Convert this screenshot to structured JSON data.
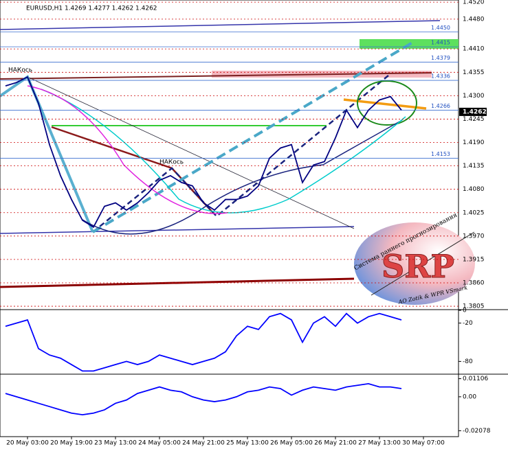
{
  "chart_data": [
    {
      "type": "line",
      "title": "EURUSD,H1  1.4269 1.4277 1.4262 1.4262",
      "ylim": [
        1.3797,
        1.4525
      ],
      "yticks": [
        {
          "value": 1.452,
          "label": "1.4520"
        },
        {
          "value": 1.448,
          "label": "1.4480"
        },
        {
          "value": 1.441,
          "label": "1.4410"
        },
        {
          "value": 1.4355,
          "label": "1.4355"
        },
        {
          "value": 1.43,
          "label": "1.4300"
        },
        {
          "value": 1.4245,
          "label": "1.4245"
        },
        {
          "value": 1.419,
          "label": "1.4190"
        },
        {
          "value": 1.4135,
          "label": "1.4135"
        },
        {
          "value": 1.408,
          "label": "1.4080"
        },
        {
          "value": 1.4025,
          "label": "1.4025"
        },
        {
          "value": 1.397,
          "label": "1.3970"
        },
        {
          "value": 1.3915,
          "label": "1.3915"
        },
        {
          "value": 1.386,
          "label": "1.3860"
        },
        {
          "value": 1.3805,
          "label": "1.3805"
        }
      ],
      "grid": true,
      "levels": [
        {
          "value": 1.445,
          "label": "1.4450"
        },
        {
          "value": 1.4415,
          "label": "1.4415"
        },
        {
          "value": 1.4379,
          "label": "1.4379"
        },
        {
          "value": 1.4336,
          "label": "1.4336"
        },
        {
          "value": 1.4266,
          "label": "1.4266"
        },
        {
          "value": 1.4153,
          "label": "1.4153"
        }
      ],
      "current_price": {
        "value": 1.4262,
        "label": "1.4262"
      },
      "annotations": [
        "НАКось",
        "НАКось"
      ],
      "series": [
        {
          "color": "#000080",
          "values": [
            1.4323,
            1.4331,
            1.4344,
            1.4282,
            1.4185,
            1.4112,
            1.4056,
            1.4007,
            1.3991,
            1.404,
            1.4048,
            1.4031,
            1.4048,
            1.4072,
            1.4101,
            1.4112,
            1.4096,
            1.4088,
            1.4048,
            1.4031,
            1.4056,
            1.4056,
            1.4064,
            1.4088,
            1.4153,
            1.4177,
            1.4185,
            1.4096,
            1.4137,
            1.4145,
            1.4201,
            1.4266,
            1.4225,
            1.4266,
            1.429,
            1.4298,
            1.4266,
            null,
            null
          ]
        }
      ]
    },
    {
      "type": "line",
      "ylim": [
        -100,
        0
      ],
      "yticks": [
        0,
        -20,
        -80
      ],
      "series": [
        {
          "color": "#0000ff",
          "values": [
            -25,
            -20,
            -15,
            -60,
            -70,
            -75,
            -85,
            -95,
            -95,
            -90,
            -85,
            -80,
            -85,
            -80,
            -70,
            -75,
            -80,
            -85,
            -80,
            -75,
            -65,
            -40,
            -25,
            -30,
            -10,
            -5,
            -15,
            -50,
            -20,
            -10,
            -25,
            -5,
            -20,
            -10,
            -5,
            -10,
            -15,
            null,
            null
          ]
        }
      ]
    },
    {
      "type": "line",
      "ylim": [
        -0.0244,
        0.0134
      ],
      "yticks": [
        0.01106,
        {
          "value": 0,
          "label": "0.00"
        },
        -0.02078
      ],
      "categories": [
        null,
        null,
        "20 May 03:00",
        null,
        null,
        null,
        "20 May 19:00",
        null,
        null,
        null,
        "23 May 13:00",
        null,
        null,
        null,
        "24 May 05:00",
        null,
        null,
        null,
        "24 May 21:00",
        null,
        null,
        null,
        "25 May 13:00",
        null,
        null,
        null,
        "26 May 05:00",
        null,
        null,
        null,
        "26 May 21:00",
        null,
        null,
        null,
        "27 May 13:00",
        null,
        null,
        null,
        "30 May 07:00"
      ],
      "series": [
        {
          "color": "#0000ff",
          "values": [
            0.002,
            0,
            -0.002,
            -0.004,
            -0.006,
            -0.008,
            -0.01,
            -0.011,
            -0.01,
            -0.008,
            -0.004,
            -0.002,
            0.002,
            0.004,
            0.006,
            0.004,
            0.003,
            0,
            -0.002,
            -0.003,
            -0.002,
            0,
            0.003,
            0.004,
            0.006,
            0.005,
            0.001,
            0.004,
            0.006,
            0.005,
            0.004,
            0.006,
            0.007,
            0.008,
            0.006,
            0.006,
            0.005,
            null,
            null
          ]
        }
      ]
    }
  ],
  "logo": {
    "title": "SRP",
    "arc_text": "Система раннего прогнозирования",
    "credit": "AO Zotik & WPR VSmark"
  }
}
